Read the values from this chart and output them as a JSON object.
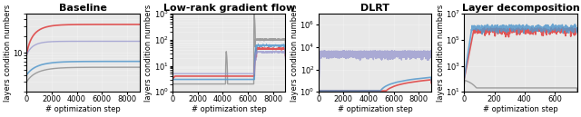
{
  "titles": [
    "Baseline",
    "Low-rank gradient flow",
    "DLRT",
    "Layer decomposition"
  ],
  "xlabel": "# optimization step",
  "ylabel": "layers condition numbers",
  "subplot_bg": "#e8e8e8",
  "title_fontsize": 8,
  "label_fontsize": 6,
  "tick_fontsize": 6
}
